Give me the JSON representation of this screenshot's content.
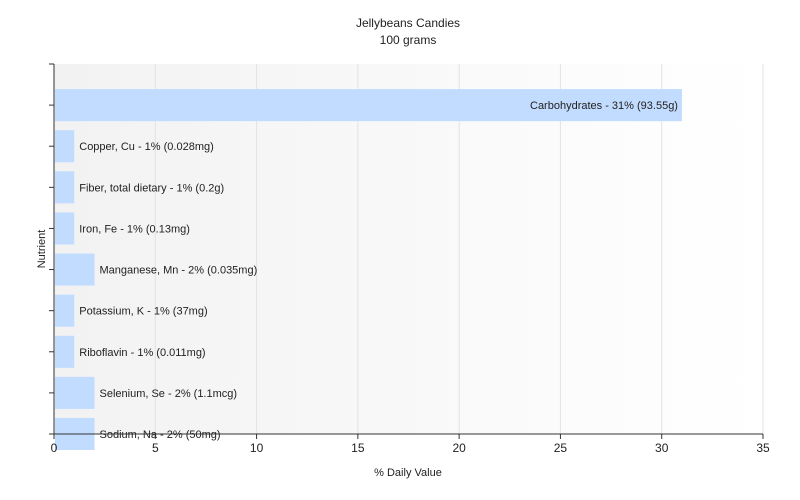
{
  "chart_data": {
    "type": "bar",
    "orientation": "horizontal",
    "title": "Jellybeans Candies",
    "subtitle": "100 grams",
    "xlabel": "% Daily Value",
    "ylabel": "Nutrient",
    "xlim": [
      0,
      35
    ],
    "x_ticks": [
      0,
      5,
      10,
      15,
      20,
      25,
      30,
      35
    ],
    "grid": true,
    "bar_color": "#c2dcff",
    "categories": [
      "Carbohydrates",
      "Copper, Cu",
      "Fiber, total dietary",
      "Iron, Fe",
      "Manganese, Mn",
      "Potassium, K",
      "Riboflavin",
      "Selenium, Se",
      "Sodium, Na"
    ],
    "values": [
      31,
      1,
      1,
      1,
      2,
      1,
      1,
      2,
      2
    ],
    "labels": [
      "Carbohydrates - 31% (93.55g)",
      "Copper, Cu - 1% (0.028mg)",
      "Fiber, total dietary - 1% (0.2g)",
      "Iron, Fe - 1% (0.13mg)",
      "Manganese, Mn - 2% (0.035mg)",
      "Potassium, K - 1% (37mg)",
      "Riboflavin - 1% (0.011mg)",
      "Selenium, Se - 2% (1.1mcg)",
      "Sodium, Na - 2% (50mg)"
    ]
  }
}
